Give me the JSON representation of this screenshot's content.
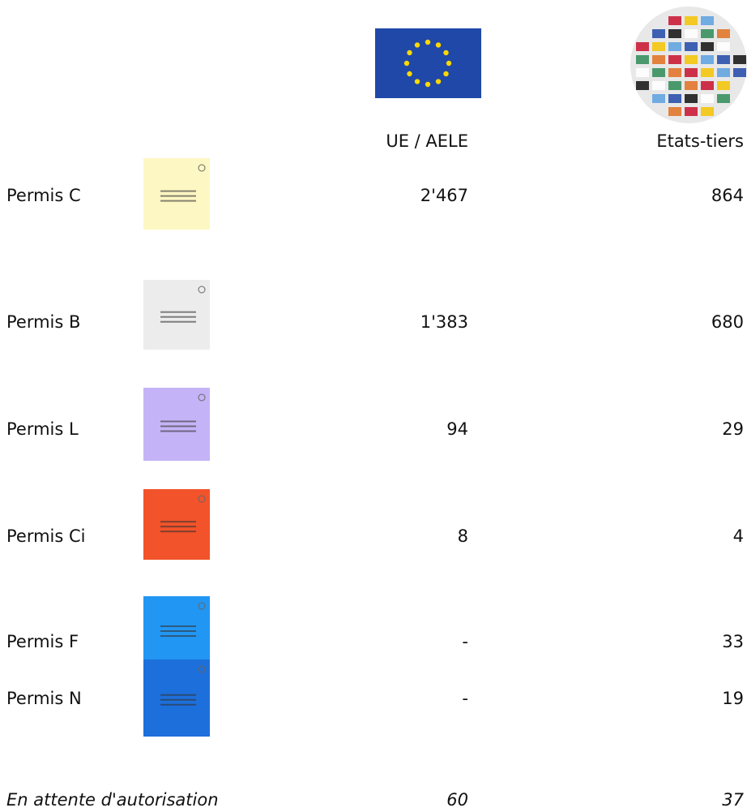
{
  "header": {
    "columns": [
      "UE / AELE",
      "Etats-tiers"
    ]
  },
  "table": {
    "rows": [
      [
        "Permis C",
        "2'467",
        "864"
      ],
      [
        "Permis B",
        "1'383",
        "680"
      ],
      [
        "Permis L",
        "94",
        "29"
      ],
      [
        "Permis Ci",
        "8",
        "4"
      ],
      [
        "Permis F",
        "-",
        "33"
      ],
      [
        "Permis N",
        "-",
        "19"
      ],
      [
        "En attente d'autorisation",
        "60",
        "37"
      ]
    ]
  }
}
